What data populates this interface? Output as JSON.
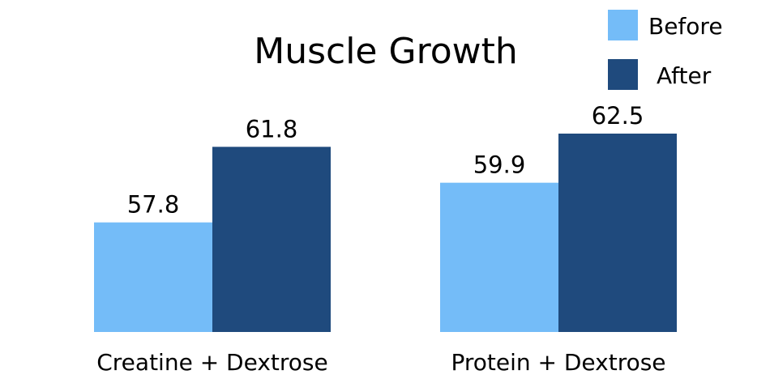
{
  "chart_data": {
    "type": "bar",
    "title": "Muscle Growth",
    "categories": [
      "Creatine + Dextrose",
      "Protein + Dextrose"
    ],
    "series": [
      {
        "name": "Before",
        "values": [
          57.8,
          59.9
        ],
        "color": "#74bcf8"
      },
      {
        "name": "After",
        "values": [
          61.8,
          62.5
        ],
        "color": "#1f4a7d"
      }
    ],
    "ylim": [
      52,
      64
    ],
    "grid": false,
    "legend_position": "top-right",
    "xlabel": "",
    "ylabel": ""
  }
}
